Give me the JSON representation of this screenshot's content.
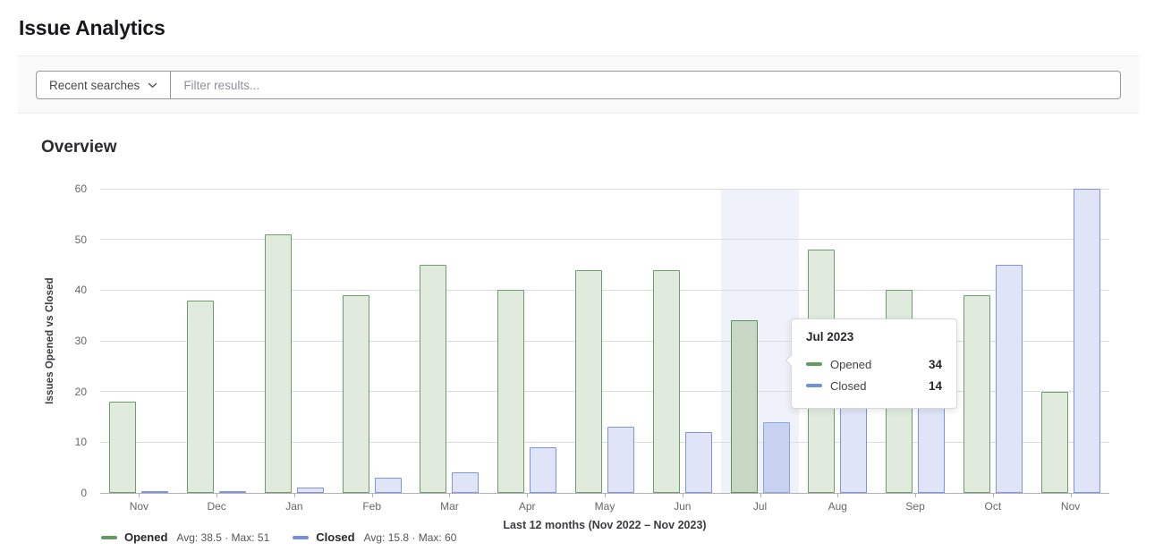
{
  "page": {
    "title": "Issue Analytics"
  },
  "filter_bar": {
    "recent_searches_label": "Recent searches",
    "filter_placeholder": "Filter results..."
  },
  "section": {
    "heading": "Overview"
  },
  "chart_data": {
    "type": "bar",
    "title": "Overview",
    "categories": [
      "Nov",
      "Dec",
      "Jan",
      "Feb",
      "Mar",
      "Apr",
      "May",
      "Jun",
      "Jul",
      "Aug",
      "Sep",
      "Oct",
      "Nov"
    ],
    "series": [
      {
        "name": "Opened",
        "values": [
          18,
          38,
          51,
          39,
          45,
          40,
          44,
          44,
          34,
          48,
          40,
          39,
          20
        ],
        "avg": 38.5,
        "max": 51,
        "legend_stats": "Avg: 38.5 · Max: 51",
        "stroke": "#6a9e6a",
        "fill": "#e0ebde",
        "hover_stroke": "#5b915b",
        "hover_fill": "#c8d8c5",
        "swatch": "#609b60"
      },
      {
        "name": "Closed",
        "values": [
          0,
          0,
          1,
          3,
          4,
          9,
          13,
          12,
          14,
          22,
          22,
          45,
          60
        ],
        "avg": 15.8,
        "max": 60,
        "legend_stats": "Avg: 15.8 · Max: 60",
        "stroke": "#7d94e0",
        "fill": "#dfe5f7",
        "hover_stroke": "#8ba3e8",
        "hover_fill": "#c6d2f0",
        "swatch": "#7190dc"
      }
    ],
    "xlabel": "Last 12 months (Nov 2022 – Nov 2023)",
    "ylabel": "Issues Opened vs Closed",
    "ylim": [
      0,
      60
    ],
    "yticks": [
      0,
      10,
      20,
      30,
      40,
      50,
      60
    ],
    "grid": true,
    "legend_position": "bottom-left",
    "hovered_index": 8,
    "hover_band_color": "#eff2fa",
    "gridline_color": "#dcdcdf",
    "axis_line_color": "#b3b3b6"
  },
  "tooltip": {
    "title": "Jul 2023",
    "rows": [
      {
        "label": "Opened",
        "value": "34",
        "color": "#609b60"
      },
      {
        "label": "Closed",
        "value": "14",
        "color": "#7190dc"
      }
    ]
  }
}
